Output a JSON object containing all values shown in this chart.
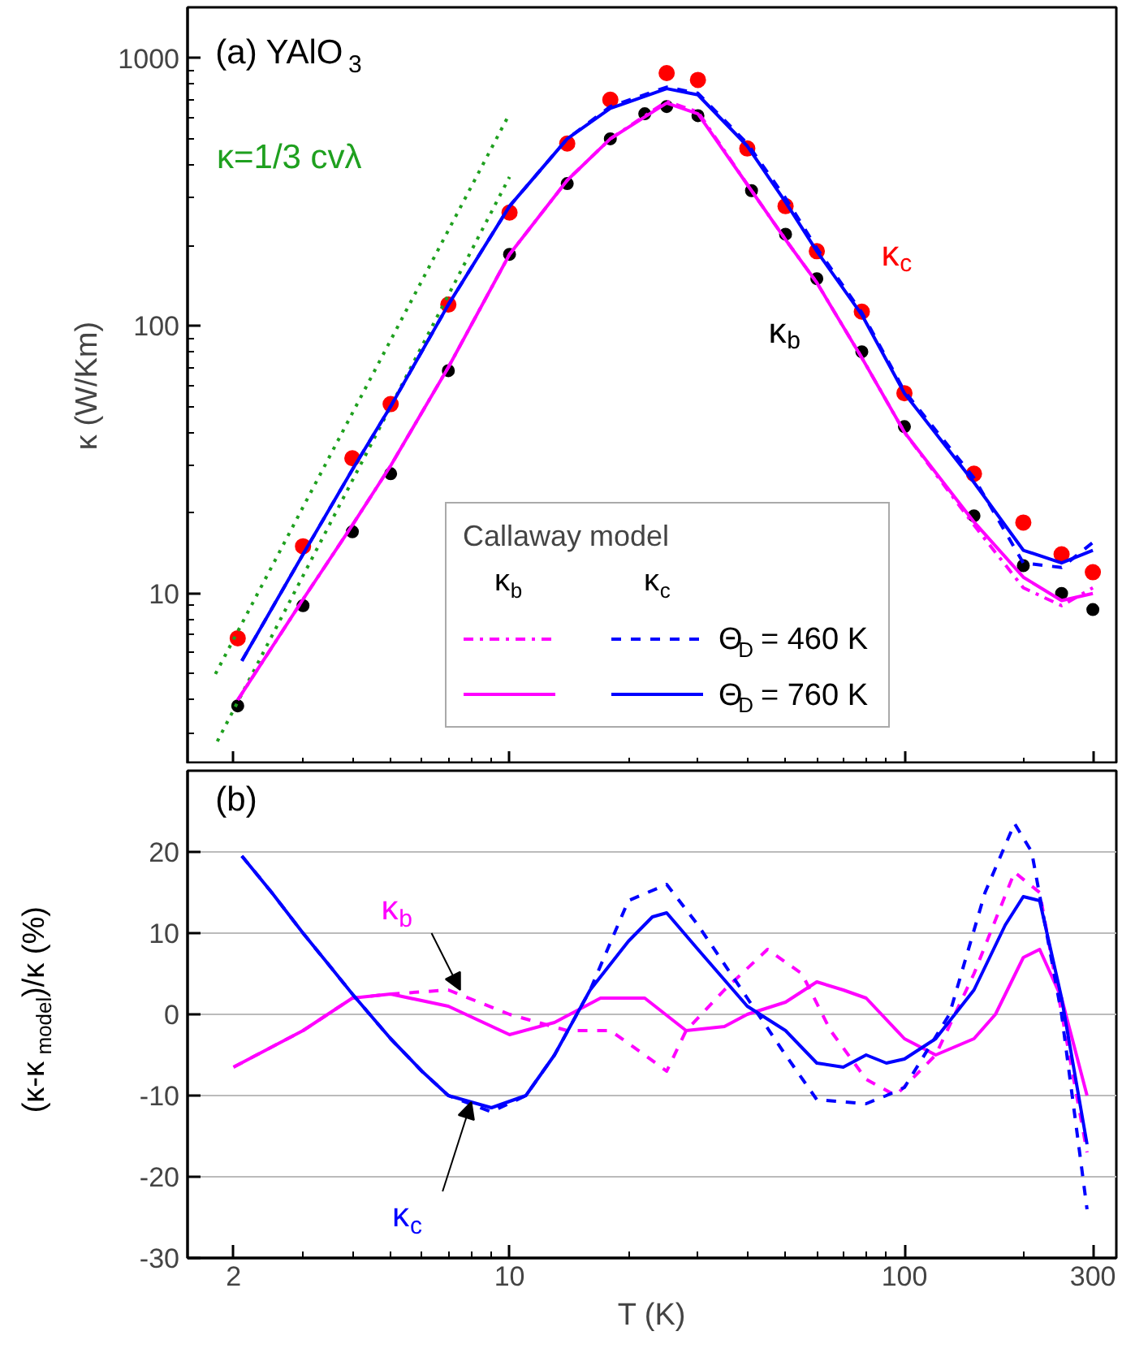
{
  "chart_data": [
    {
      "type": "scatter",
      "title": "(a)  YAlO$_{3}$",
      "ylabel": "κ (W/Km)",
      "log": "xy",
      "xlim": [
        1.53,
        344
      ],
      "ylim": [
        2.3,
        1550
      ],
      "xticks": [
        2,
        10,
        100,
        300
      ],
      "yticks": [
        10,
        100,
        1000
      ],
      "tick_labels": "y",
      "grid": false,
      "legend": "bottom right",
      "legend_title": "Callaway model",
      "annotations": [
        "κ=1/3 cvλ",
        "κ$_{b}$",
        "κ$_{c}$"
      ],
      "series": [
        {
          "name": "κ$_{b}$",
          "type": "scatter",
          "marker": "circle",
          "color": "#000000",
          "x": [
            2.05,
            3,
            4,
            5,
            7,
            10,
            14,
            18,
            22,
            25,
            30,
            41,
            50,
            60,
            78,
            100,
            150,
            200,
            250,
            300
          ],
          "values": [
            3.8,
            9,
            17,
            28,
            68,
            185,
            340,
            500,
            620,
            660,
            610,
            320,
            220,
            150,
            80,
            42,
            19.5,
            12.7,
            10,
            8.7
          ]
        },
        {
          "name": "κ$_{c}$",
          "type": "scatter",
          "marker": "circle",
          "color": "#ff0000",
          "x": [
            2.05,
            3,
            4,
            5,
            7,
            10,
            14,
            18,
            25,
            30,
            40,
            50,
            60,
            78,
            100,
            150,
            200,
            250,
            300
          ],
          "values": [
            6.8,
            15,
            32,
            51,
            120,
            265,
            480,
            700,
            880,
            830,
            460,
            280,
            190,
            113,
            56,
            28,
            18.4,
            14,
            12
          ]
        },
        {
          "type": "line",
          "color": "#1fa01f",
          "line_style": "dotted",
          "x": [
            1.8,
            10
          ],
          "values": [
            5.0,
            620
          ]
        },
        {
          "type": "line",
          "color": "#1fa01f",
          "line_style": "dotted",
          "x": [
            1.82,
            10
          ],
          "values": [
            2.8,
            360
          ]
        },
        {
          "type": "line",
          "color": "#ff00ff",
          "line_style": "dashdot",
          "x": [
            2.05,
            3,
            4,
            5,
            7,
            10,
            14,
            18,
            25,
            30,
            41,
            50,
            60,
            78,
            100,
            150,
            200,
            250,
            300
          ],
          "values": [
            4,
            9.5,
            18,
            30,
            70,
            185,
            350,
            500,
            690,
            630,
            320,
            210,
            145,
            76,
            40,
            18,
            10.5,
            9,
            10.5
          ]
        },
        {
          "name": "Θ$_{D}$ = 460 K",
          "type": "line",
          "color": "#0000ff",
          "line_style": "dashed",
          "x": [
            2.1,
            3,
            4,
            5,
            7,
            10,
            14,
            18,
            25,
            30,
            40,
            50,
            60,
            78,
            100,
            150,
            200,
            250,
            300
          ],
          "values": [
            5.6,
            14,
            29,
            50,
            120,
            280,
            500,
            660,
            780,
            740,
            480,
            300,
            195,
            112,
            57,
            27,
            13,
            12.5,
            15.5
          ]
        },
        {
          "type": "line",
          "color": "#ff00ff",
          "line_style": "solid",
          "x": [
            2.05,
            3,
            4,
            5,
            7,
            10,
            14,
            18,
            25,
            30,
            41,
            50,
            60,
            78,
            100,
            150,
            200,
            250,
            300
          ],
          "values": [
            4,
            9.5,
            18,
            30,
            70,
            185,
            350,
            500,
            680,
            620,
            320,
            210,
            145,
            76,
            40,
            18.5,
            11.5,
            9.4,
            10
          ]
        },
        {
          "name": "Θ$_{D}$ = 760 K",
          "type": "line",
          "color": "#0000ff",
          "line_style": "solid",
          "x": [
            2.1,
            3,
            4,
            5,
            7,
            10,
            14,
            18,
            25,
            30,
            40,
            50,
            60,
            78,
            100,
            150,
            200,
            250,
            300
          ],
          "values": [
            5.6,
            14,
            29,
            50,
            120,
            280,
            500,
            650,
            770,
            730,
            470,
            290,
            190,
            110,
            56,
            26,
            14.5,
            13,
            14.5
          ]
        }
      ]
    },
    {
      "type": "line",
      "title": "(b)",
      "xlabel": "T (K)",
      "ylabel": "(κ-κ$_{model}$)/κ (%)",
      "log": "x",
      "xlim": [
        1.53,
        344
      ],
      "ylim": [
        -30,
        30
      ],
      "xticks": [
        2,
        10,
        100,
        300
      ],
      "yticks": [
        -30,
        -20,
        -10,
        0,
        10,
        20
      ],
      "grid": "y",
      "annotations": [
        {
          "text": "κ$_{b}$",
          "x": 7.5,
          "y": 3
        },
        {
          "text": "κ$_{c}$",
          "x": 8,
          "y": -10.8
        }
      ],
      "series": [
        {
          "color": "#ff00ff",
          "line_style": "solid",
          "x": [
            2,
            3,
            4,
            5,
            7,
            10,
            13,
            17,
            22,
            28,
            35,
            40,
            50,
            60,
            70,
            80,
            100,
            120,
            150,
            170,
            200,
            220,
            250,
            290
          ],
          "values": [
            -6.5,
            -2,
            2,
            2.5,
            1,
            -2.5,
            -1,
            2,
            2,
            -2,
            -1.5,
            0,
            1.5,
            4,
            3,
            2,
            -3,
            -5,
            -3,
            0,
            7,
            8,
            2,
            -10
          ]
        },
        {
          "color": "#ff00ff",
          "line_style": "dashed",
          "x": [
            2,
            3,
            4,
            5,
            7,
            10,
            14,
            18,
            22,
            25,
            28,
            35,
            45,
            55,
            65,
            80,
            95,
            120,
            150,
            190,
            220,
            290
          ],
          "values": [
            -6.5,
            -2,
            2,
            2.5,
            3,
            0,
            -2,
            -2,
            -5,
            -7,
            -2,
            3,
            8,
            5,
            -2,
            -8,
            -10,
            -5,
            5,
            17.5,
            15,
            -17
          ]
        },
        {
          "color": "#0000ff",
          "line_style": "solid",
          "x": [
            2.1,
            2.5,
            3,
            3.5,
            4,
            5,
            6,
            7,
            9,
            11,
            13,
            16,
            20,
            23,
            25,
            30,
            40,
            50,
            60,
            70,
            80,
            90,
            100,
            120,
            150,
            180,
            200,
            220,
            250,
            290
          ],
          "values": [
            19.5,
            15,
            10,
            6,
            2.5,
            -3,
            -7,
            -10,
            -11.5,
            -10,
            -5,
            3,
            9,
            12,
            12.5,
            8,
            1,
            -2,
            -6,
            -6.5,
            -5,
            -6,
            -5.5,
            -3,
            3,
            11,
            14.5,
            14,
            2,
            -16
          ]
        },
        {
          "color": "#0000ff",
          "line_style": "dashed",
          "x": [
            2.1,
            2.5,
            3,
            3.5,
            4,
            5,
            6,
            7,
            9,
            11,
            13,
            16,
            20,
            25,
            30,
            40,
            50,
            60,
            80,
            90,
            100,
            130,
            160,
            190,
            210,
            250,
            290
          ],
          "values": [
            19.5,
            15,
            10,
            6,
            2.5,
            -3,
            -7,
            -10,
            -12,
            -10,
            -5,
            3,
            14,
            16,
            11,
            2,
            -5,
            -10.5,
            -11,
            -10,
            -9,
            0,
            15,
            23.5,
            20,
            0,
            -24
          ]
        }
      ]
    }
  ]
}
